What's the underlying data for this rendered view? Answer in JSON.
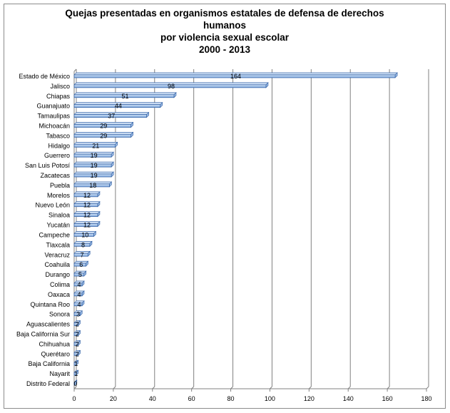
{
  "chart_data": {
    "type": "bar",
    "orientation": "horizontal",
    "title_lines": [
      "Quejas presentadas en organismos estatales de defensa de derechos",
      "humanos",
      "por violencia sexual escolar",
      "2000 - 2013"
    ],
    "categories": [
      "Estado de México",
      "Jalisco",
      "Chiapas",
      "Guanajuato",
      "Tamaulipas",
      "Michoacán",
      "Tabasco",
      "Hidalgo",
      "Guerrero",
      "San Luis Potosí",
      "Zacatecas",
      "Puebla",
      "Morelos",
      "Nuevo León",
      "Sinaloa",
      "Yucatán",
      "Campeche",
      "Tlaxcala",
      "Veracruz",
      "Coahuila",
      "Durango",
      "Colima",
      "Oaxaca",
      "Quintana Roo",
      "Sonora",
      "Aguascalientes",
      "Baja California Sur",
      "Chihuahua",
      "Querétaro",
      "Baja California",
      "Nayarit",
      "Distrito Federal"
    ],
    "values": [
      164,
      98,
      51,
      44,
      37,
      29,
      29,
      21,
      19,
      19,
      19,
      18,
      12,
      12,
      12,
      12,
      10,
      8,
      7,
      6,
      5,
      4,
      4,
      4,
      3,
      2,
      2,
      2,
      2,
      1,
      1,
      0
    ],
    "xlim": [
      0,
      180
    ],
    "x_ticks": [
      0,
      20,
      40,
      60,
      80,
      100,
      120,
      140,
      160,
      180
    ],
    "grid": "vertical",
    "legend": "none",
    "colors": {
      "bar_fill": "#9bbbe4",
      "bar_fill_light": "#c9dbf2",
      "bar_edge": "#2f5ea3",
      "gridline": "#808080",
      "axis": "#808080",
      "frame": "#8c8c8c"
    }
  }
}
